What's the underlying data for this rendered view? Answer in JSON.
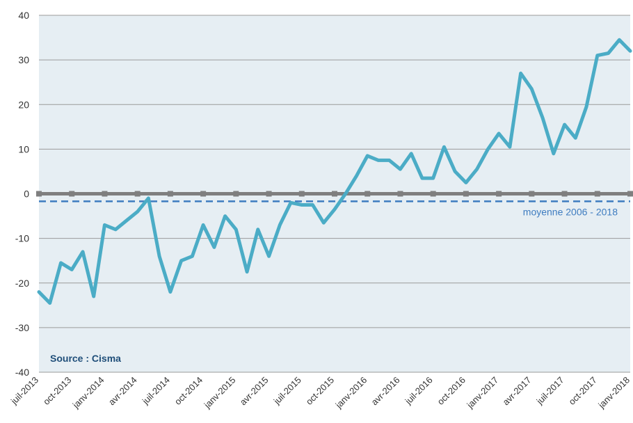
{
  "chart_data": {
    "type": "line",
    "title": "",
    "xlabel": "",
    "ylabel": "",
    "ylim": [
      -40,
      40
    ],
    "yticks": [
      40,
      30,
      20,
      10,
      0,
      -10,
      -20,
      -30,
      -40
    ],
    "grid": true,
    "source_label": "Source : Cisma",
    "x_tick_labels": [
      "juil-2013",
      "oct-2013",
      "janv-2014",
      "avr-2014",
      "juil-2014",
      "oct-2014",
      "janv-2015",
      "avr-2015",
      "juil-2015",
      "oct-2015",
      "janv-2016",
      "avr-2016",
      "juil-2016",
      "oct-2016",
      "janv-2017",
      "avr-2017",
      "juil-2017",
      "oct-2017",
      "janv-2018"
    ],
    "x": [
      "2013-07",
      "2013-08",
      "2013-09",
      "2013-10",
      "2013-11",
      "2013-12",
      "2014-01",
      "2014-02",
      "2014-03",
      "2014-04",
      "2014-05",
      "2014-06",
      "2014-07",
      "2014-08",
      "2014-09",
      "2014-10",
      "2014-11",
      "2014-12",
      "2015-01",
      "2015-02",
      "2015-03",
      "2015-04",
      "2015-05",
      "2015-06",
      "2015-07",
      "2015-08",
      "2015-09",
      "2015-10",
      "2015-11",
      "2015-12",
      "2016-01",
      "2016-02",
      "2016-03",
      "2016-04",
      "2016-05",
      "2016-06",
      "2016-07",
      "2016-08",
      "2016-09",
      "2016-10",
      "2016-11",
      "2016-12",
      "2017-01",
      "2017-02",
      "2017-03",
      "2017-04",
      "2017-05",
      "2017-06",
      "2017-07",
      "2017-08",
      "2017-09",
      "2017-10",
      "2017-11",
      "2017-12",
      "2018-01"
    ],
    "series": [
      {
        "name": "",
        "color": "#4bacc6",
        "values": [
          -22,
          -24.5,
          -15.5,
          -17,
          -13,
          -23,
          -7,
          -8,
          -6,
          -4,
          -1,
          -14,
          -22,
          -15,
          -14,
          -7,
          -12,
          -5,
          -8,
          -17.5,
          -8,
          -14,
          -7,
          -2,
          -2.5,
          -2.5,
          -6.5,
          -3.5,
          0,
          4,
          8.5,
          7.5,
          7.5,
          5.5,
          9,
          3.5,
          3.5,
          10.5,
          5,
          2.5,
          5.5,
          10,
          13.5,
          10.5,
          27,
          23.5,
          17,
          9,
          15.5,
          12.5,
          19.5,
          31,
          31.5,
          34.5,
          32
        ]
      }
    ],
    "reference_lines": [
      {
        "value": -1.7,
        "label": "moyenne 2006 - 2018",
        "style": "dashed",
        "color": "#3e7cc0"
      }
    ],
    "zero_line": {
      "value": 0,
      "color": "#7f7f7f"
    }
  }
}
